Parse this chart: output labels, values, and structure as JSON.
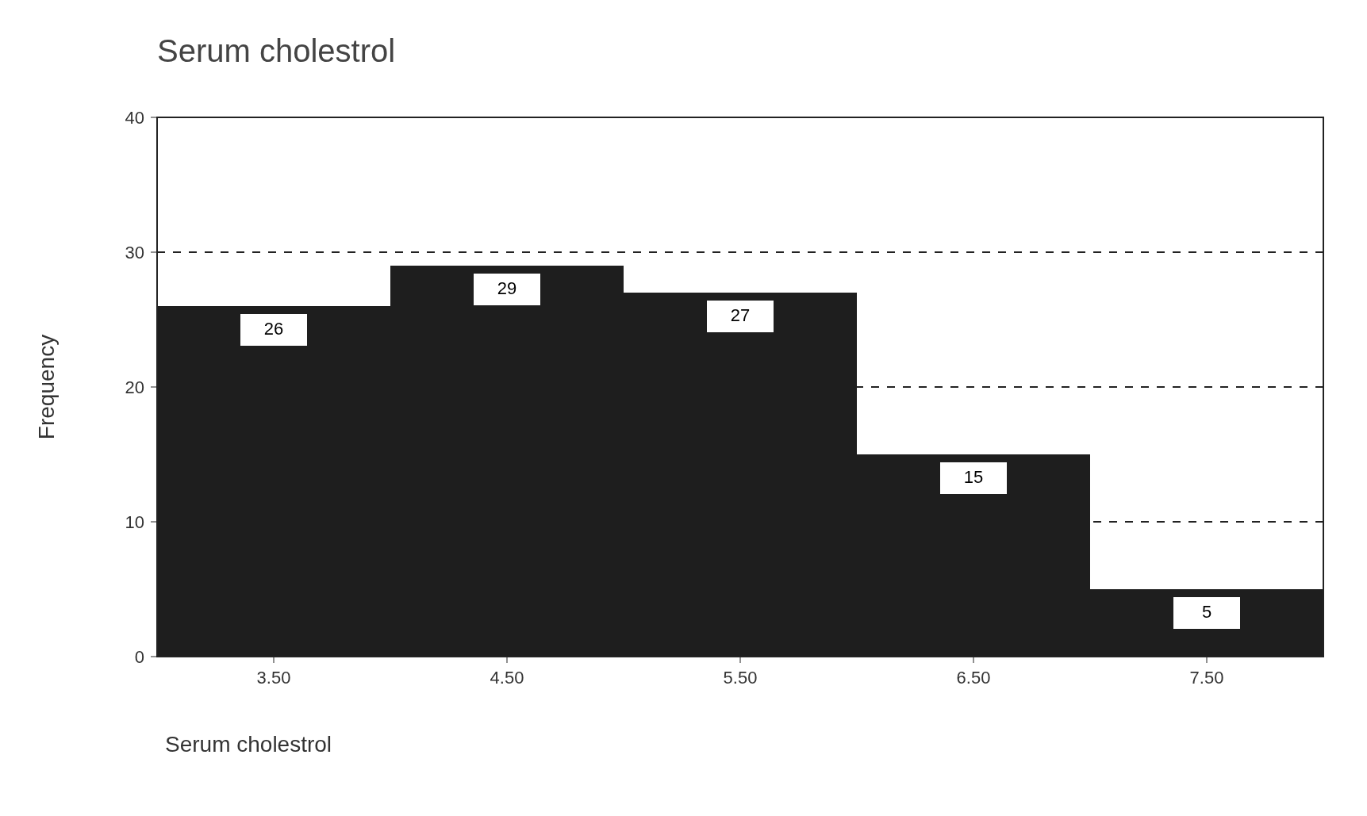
{
  "chart_data": {
    "type": "histogram",
    "title": "Serum cholestrol",
    "xlabel": "Serum cholestrol",
    "ylabel": "Frequency",
    "bins": [
      3,
      4,
      5,
      6,
      7,
      8
    ],
    "values": [
      26,
      29,
      27,
      15,
      5
    ],
    "color": "#1e1e1e",
    "xlim": [
      3,
      8
    ],
    "xticks": [
      {
        "value": 3.5,
        "label": "3.50"
      },
      {
        "value": 4.5,
        "label": "4.50"
      },
      {
        "value": 5.5,
        "label": "5.50"
      },
      {
        "value": 6.5,
        "label": "6.50"
      },
      {
        "value": 7.5,
        "label": "7.50"
      }
    ],
    "ylim": [
      0,
      40
    ],
    "yticks": [
      0,
      10,
      20,
      30,
      40
    ],
    "grid": "y",
    "data_labels": true
  }
}
